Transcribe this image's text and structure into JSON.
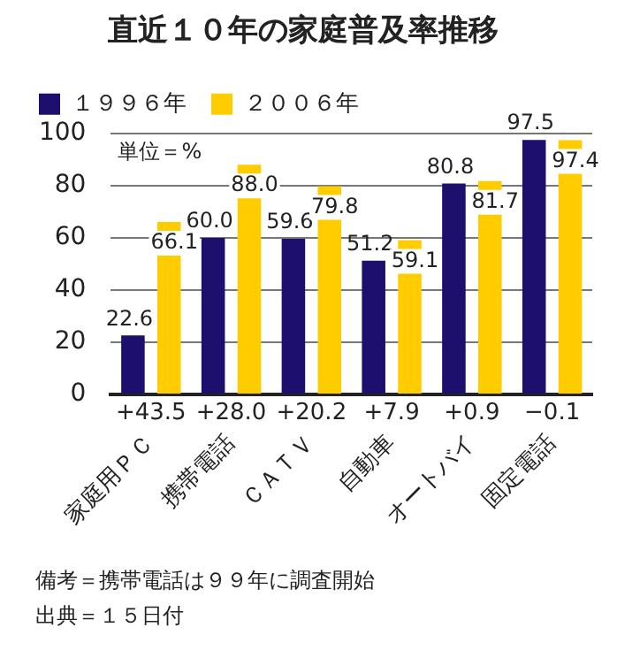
{
  "chart_data": {
    "type": "bar",
    "title": "直近１０年の家庭普及率推移",
    "ylabel": "単位＝%",
    "categories": [
      "家庭用ＰＣ",
      "携帯電話",
      "ＣＡＴＶ",
      "自動車",
      "オートバイ",
      "固定電話"
    ],
    "series": [
      {
        "name": "１９９６年",
        "color": "#1c0f6e",
        "values": [
          22.6,
          60.0,
          59.6,
          51.2,
          80.8,
          97.5
        ],
        "value_labels": [
          "22.6",
          "60.0",
          "59.6",
          "51.2",
          "80.8",
          "97.5"
        ]
      },
      {
        "name": "２００６年",
        "color": "#ffcc00",
        "values": [
          66.1,
          88.0,
          79.8,
          59.1,
          81.7,
          97.4
        ],
        "value_labels": [
          "66.1",
          "88.0",
          "79.8",
          "59.1",
          "81.7",
          "97.4"
        ]
      }
    ],
    "ylim": [
      0,
      100
    ],
    "yticks": [
      0,
      20,
      40,
      60,
      80,
      100
    ],
    "grid": "y",
    "legend": "top left",
    "annotations": [
      "+43.5",
      "+28.0",
      "+20.2",
      "+7.9",
      "+0.9",
      "−0.1",
      "備考＝携帯電話は９９年に調査開始",
      "出典＝１５日付"
    ]
  }
}
